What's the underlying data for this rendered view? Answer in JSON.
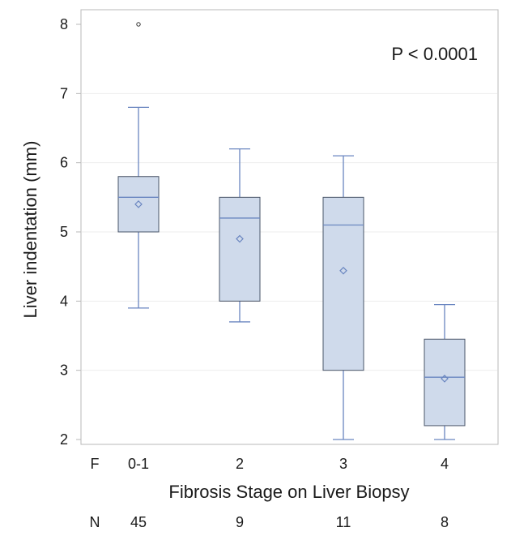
{
  "chart_data": {
    "type": "box",
    "title": "",
    "xlabel": "Fibrosis Stage on Liver Biopsy",
    "ylabel": "Liver indentation (mm)",
    "ylim": [
      2,
      8
    ],
    "yticks": [
      "2",
      "3",
      "4",
      "5",
      "6",
      "7",
      "8"
    ],
    "annotation": "P < 0.0001",
    "grid": "horizontal, faint",
    "box_color": "#cfdaeb",
    "line_color": "#6a86c0",
    "categories_row_label": "F",
    "n_row_label": "N",
    "categories": [
      "0-1",
      "2",
      "3",
      "4"
    ],
    "n": [
      "45",
      "9",
      "11",
      "8"
    ],
    "boxes": [
      {
        "category": "0-1",
        "whisker_low": 3.9,
        "q1": 5.0,
        "median": 5.5,
        "q3": 5.8,
        "whisker_high": 6.8,
        "mean": 5.4,
        "outliers": [
          8.0
        ]
      },
      {
        "category": "2",
        "whisker_low": 3.7,
        "q1": 4.0,
        "median": 5.2,
        "q3": 5.5,
        "whisker_high": 6.2,
        "mean": 4.9,
        "outliers": []
      },
      {
        "category": "3",
        "whisker_low": 2.0,
        "q1": 3.0,
        "median": 5.1,
        "q3": 5.5,
        "whisker_high": 6.1,
        "mean": 4.44,
        "outliers": []
      },
      {
        "category": "4",
        "whisker_low": 2.0,
        "q1": 2.2,
        "median": 2.9,
        "q3": 3.45,
        "whisker_high": 3.95,
        "mean": 2.88,
        "outliers": []
      }
    ]
  }
}
